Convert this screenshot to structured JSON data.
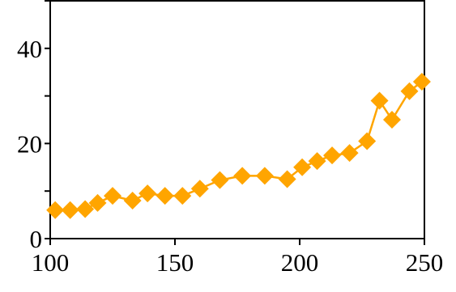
{
  "chart_data": {
    "type": "line",
    "title": "",
    "xlabel": "",
    "ylabel": "",
    "xlim": [
      100,
      250
    ],
    "ylim": [
      0,
      50
    ],
    "x_ticks": [
      100,
      150,
      200,
      250
    ],
    "x_tick_labels": [
      "100",
      "150",
      "200",
      "250"
    ],
    "y_ticks": [
      0,
      10,
      20,
      30,
      40,
      50
    ],
    "y_tick_labels": [
      "0",
      "",
      "20",
      "",
      "40",
      ""
    ],
    "grid": false,
    "legend": "none",
    "marker": "diamond",
    "color": "#FFA500",
    "series": [
      {
        "x": [
          102,
          108,
          114,
          119,
          125,
          133,
          139,
          146,
          153,
          160,
          168,
          177,
          186,
          195,
          201,
          207,
          213,
          220,
          227,
          232,
          237,
          244,
          249
        ],
        "y": [
          6,
          6,
          6.2,
          7.5,
          9,
          8,
          9.5,
          9,
          9,
          10.5,
          12.3,
          13.2,
          13.2,
          12.5,
          15,
          16.3,
          17.5,
          18,
          20.5,
          29,
          25,
          31,
          33
        ]
      }
    ]
  }
}
